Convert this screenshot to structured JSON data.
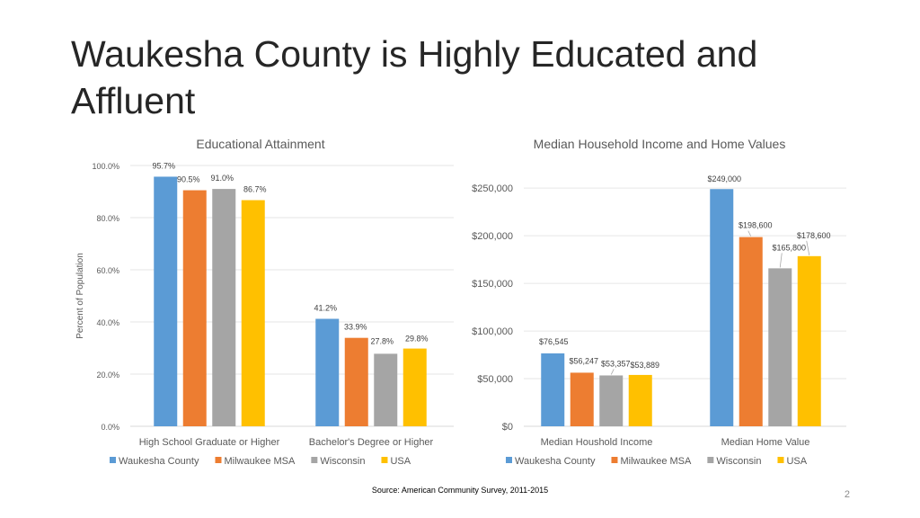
{
  "slide": {
    "title": "Waukesha County is Highly Educated and Affluent",
    "source": "Source: American Community Survey, 2011-2015",
    "page_number": "2"
  },
  "colors": {
    "Waukesha County": "#5B9BD5",
    "Milwaukee MSA": "#ED7D31",
    "Wisconsin": "#A5A5A5",
    "USA": "#FFC000"
  },
  "chart_data": [
    {
      "type": "bar",
      "title": "Educational Attainment",
      "xlabel": "",
      "ylabel": "Percent of Population",
      "categories": [
        "High School Graduate or Higher",
        "Bachelor's Degree or Higher"
      ],
      "series": [
        {
          "name": "Waukesha County",
          "values": [
            95.7,
            41.2
          ],
          "labels": [
            "95.7%",
            "41.2%"
          ]
        },
        {
          "name": "Milwaukee MSA",
          "values": [
            90.5,
            33.9
          ],
          "labels": [
            "90.5%",
            "33.9%"
          ]
        },
        {
          "name": "Wisconsin",
          "values": [
            91.0,
            27.8
          ],
          "labels": [
            "91.0%",
            "27.8%"
          ]
        },
        {
          "name": "USA",
          "values": [
            86.7,
            29.8
          ],
          "labels": [
            "86.7%",
            "29.8%"
          ]
        }
      ],
      "ylim": [
        0,
        100
      ],
      "yticks": [
        0,
        20,
        40,
        60,
        80,
        100
      ],
      "ytick_labels": [
        "0.0%",
        "20.0%",
        "40.0%",
        "60.0%",
        "80.0%",
        "100.0%"
      ],
      "grid": true,
      "legend": "bottom"
    },
    {
      "type": "bar",
      "title": "Median Household Income and Home Values",
      "xlabel": "",
      "ylabel": "",
      "categories": [
        "Median Houshold Income",
        "Median Home Value"
      ],
      "series": [
        {
          "name": "Waukesha County",
          "values": [
            76545,
            249000
          ],
          "labels": [
            "$76,545",
            "$249,000"
          ]
        },
        {
          "name": "Milwaukee MSA",
          "values": [
            56247,
            198600
          ],
          "labels": [
            "$56,247",
            "$198,600"
          ]
        },
        {
          "name": "Wisconsin",
          "values": [
            53357,
            165800
          ],
          "labels": [
            "$53,357",
            "$165,800"
          ]
        },
        {
          "name": "USA",
          "values": [
            53889,
            178600
          ],
          "labels": [
            "$53,889",
            "$178,600"
          ]
        }
      ],
      "ylim": [
        0,
        270000
      ],
      "yticks": [
        0,
        50000,
        100000,
        150000,
        200000,
        250000
      ],
      "ytick_labels": [
        "$0",
        "$50,000",
        "$100,000",
        "$150,000",
        "$200,000",
        "$250,000"
      ],
      "grid": true,
      "legend": "bottom"
    }
  ]
}
